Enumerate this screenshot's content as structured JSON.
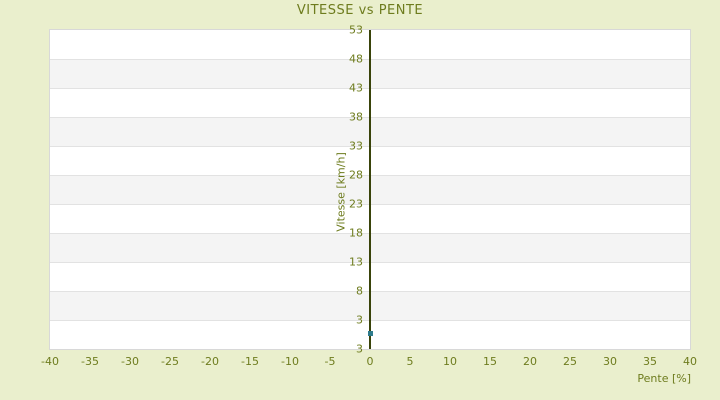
{
  "page": {
    "background": "#eaefcd"
  },
  "chart_data": {
    "type": "scatter",
    "title": "VITESSE vs PENTE",
    "xlabel": "Pente [%]",
    "ylabel": "Vitesse [km/h]",
    "x_ticks": [
      -40,
      -35,
      -30,
      -25,
      -20,
      -15,
      -10,
      -5,
      0,
      5,
      10,
      15,
      20,
      25,
      30,
      35,
      40
    ],
    "y_ticks": [
      53,
      48,
      43,
      38,
      33,
      28,
      23,
      18,
      13,
      8,
      3
    ],
    "y_axis_bottom_label": "3",
    "xlim": [
      -40,
      40
    ],
    "ylim": [
      -2,
      53
    ],
    "points": [
      {
        "x": 0,
        "y": 0.7
      }
    ],
    "grid": "horizontal-alternating-bands",
    "legend": "none",
    "colors": {
      "background": "#eaefcd",
      "text": "#6e7c1e",
      "axis_line": "#39430a",
      "band_light": "#ffffff",
      "band_dark": "#f4f4f4",
      "gridline": "#e2e2e2",
      "plot_border": "#d8d8d8",
      "point": "#2e7b8c"
    }
  }
}
